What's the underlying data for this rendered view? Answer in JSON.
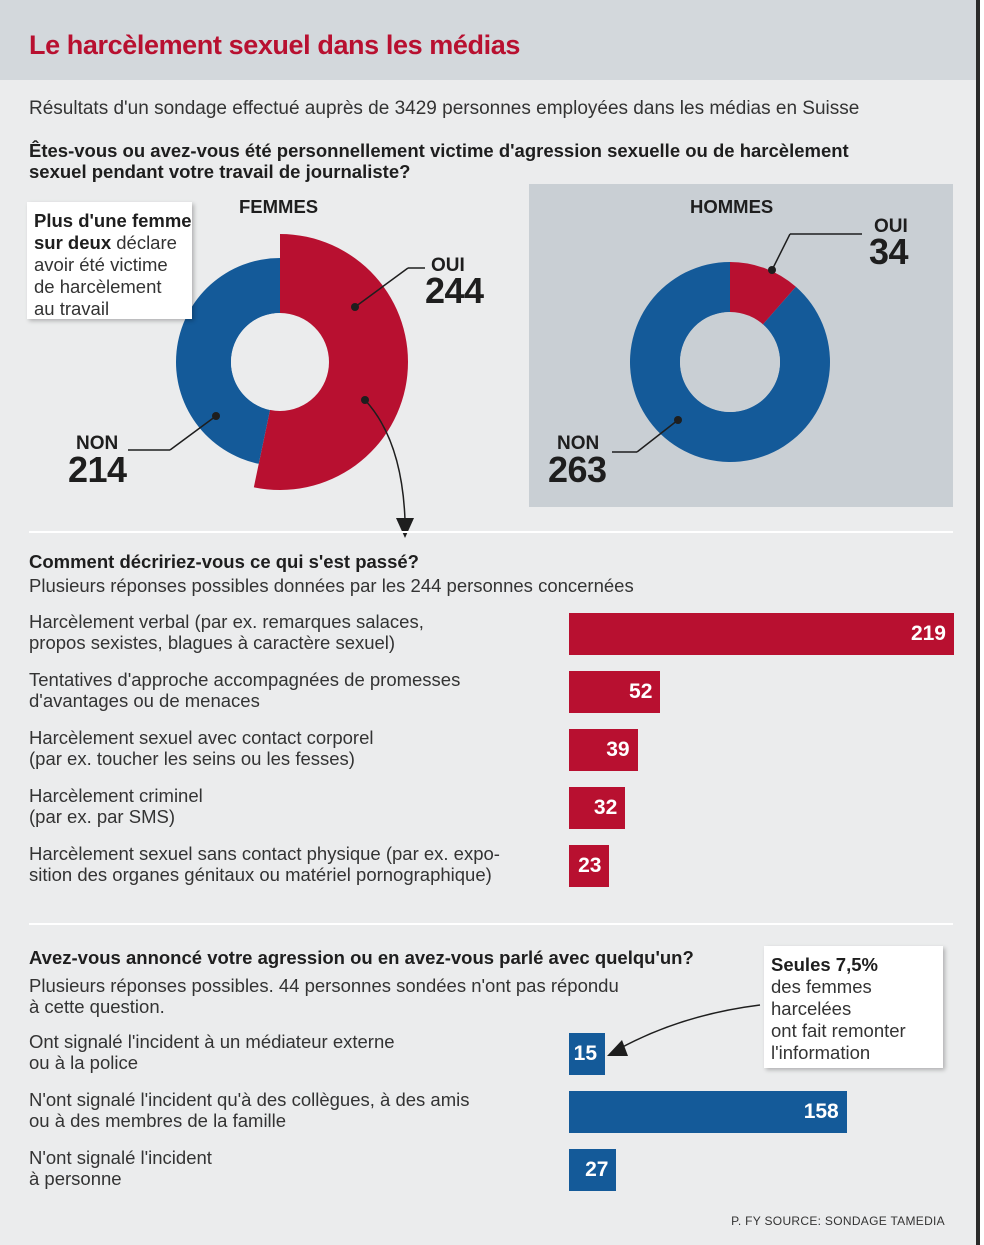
{
  "title": "Le harcèlement sexuel dans les médias",
  "subtitle": "Résultats d'un sondage effectué auprès de 3429 personnes employées dans les médias en Suisse",
  "colors": {
    "red": "#b81030",
    "blue": "#145a99"
  },
  "question1": {
    "line1": "Êtes-vous ou avez-vous été personnellement victime d'agression sexuelle ou de harcèlement",
    "line2": "sexuel pendant votre travail de journaliste?"
  },
  "callout_women": {
    "bold1": "Plus d'une femme",
    "bold2": "sur deux",
    "rest1": " déclare",
    "line3": "avoir été victime",
    "line4": "de harcèlement",
    "line5": "au travail"
  },
  "question2": {
    "title": "Comment décririez-vous ce qui s'est passé?",
    "subtitle": "Plusieurs réponses possibles données par les 244 personnes concernées"
  },
  "question3": {
    "title": "Avez-vous annoncé votre agression ou en avez-vous parlé avec quelqu'un?",
    "subtitle1": "Plusieurs réponses possibles. 44 personnes sondées n'ont pas répondu",
    "subtitle2": "à cette question."
  },
  "callout_report": {
    "bold": "Seules 7,5%",
    "line2": "des femmes",
    "line3": "harcelées",
    "line4": "ont fait remonter",
    "line5": "l'information"
  },
  "credit": "P. FY SOURCE: SONDAGE TAMEDIA",
  "chart_data": [
    {
      "type": "pie",
      "title": "FEMMES",
      "slices": [
        {
          "label": "OUI",
          "value": 244,
          "color": "#b81030"
        },
        {
          "label": "NON",
          "value": 214,
          "color": "#145a99"
        }
      ]
    },
    {
      "type": "pie",
      "title": "HOMMES",
      "slices": [
        {
          "label": "OUI",
          "value": 34,
          "color": "#b81030"
        },
        {
          "label": "NON",
          "value": 263,
          "color": "#145a99"
        }
      ]
    },
    {
      "type": "bar",
      "title": "Comment décririez-vous ce qui s'est passé?",
      "max": 219,
      "color": "#b81030",
      "rows": [
        {
          "line1": "Harcèlement verbal (par ex. remarques salaces,",
          "line2": "propos sexistes, blagues à caractère sexuel)",
          "value": 219
        },
        {
          "line1": "Tentatives d'approche accompagnées de promesses",
          "line2": "d'avantages ou de menaces",
          "value": 52
        },
        {
          "line1": "Harcèlement sexuel avec contact corporel",
          "line2": "(par ex. toucher les seins ou les fesses)",
          "value": 39
        },
        {
          "line1": "Harcèlement criminel",
          "line2": "(par ex. par SMS)",
          "value": 32
        },
        {
          "line1": "Harcèlement sexuel sans contact physique (par ex. expo-",
          "line2": "sition des organes génitaux ou matériel pornographique)",
          "value": 23
        }
      ]
    },
    {
      "type": "bar",
      "title": "Avez-vous annoncé votre agression ou en avez-vous parlé avec quelqu'un?",
      "max": 219,
      "color": "#145a99",
      "rows": [
        {
          "line1": "Ont signalé l'incident à un médiateur externe",
          "line2": "ou à la police",
          "value": 15
        },
        {
          "line1": "N'ont signalé l'incident qu'à des collègues, à des amis",
          "line2": "ou à des membres de la famille",
          "value": 158
        },
        {
          "line1": "N'ont signalé l'incident",
          "line2": "à personne",
          "value": 27
        }
      ]
    }
  ]
}
